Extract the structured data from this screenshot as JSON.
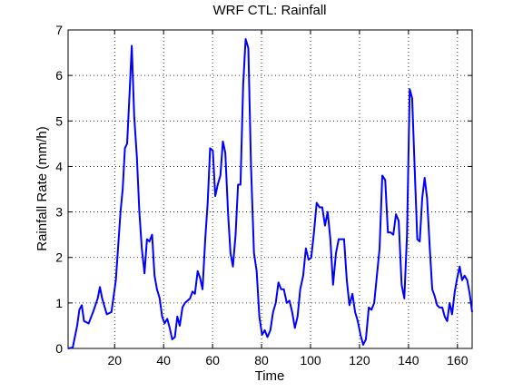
{
  "chart_data": {
    "type": "line",
    "title": "WRF CTL: Rainfall",
    "x_label": "Time",
    "y_label": "Rainfall Rate (mm/h)",
    "x": [
      1,
      2.9,
      4.7,
      5.6,
      6.6,
      7.5,
      9.4,
      11.2,
      13.1,
      14.0,
      14.9,
      16.8,
      18.7,
      20.5,
      22.4,
      23.3,
      24.2,
      25.1,
      26.1,
      27,
      28.0,
      29.1,
      30.1,
      31.1,
      32.2,
      33.2,
      34.2,
      35.3,
      36.3,
      37.3,
      38.4,
      39.4,
      40.4,
      41.5,
      42.5,
      43.5,
      44.6,
      45.6,
      46.6,
      47.7,
      48.7,
      50.8,
      51.8,
      52.8,
      53.9,
      54.9,
      55.9,
      57.0,
      58.0,
      59.0,
      60.1,
      61.1,
      62.1,
      63.2,
      64.2,
      65.2,
      66.3,
      67.3,
      68.3,
      69.4,
      70.4,
      71.4,
      72.5,
      73.5,
      74.6,
      75.7,
      76.9,
      78.0,
      79.1,
      80.2,
      81.3,
      82.4,
      83.6,
      84.7,
      85.8,
      86.9,
      88.0,
      89.1,
      90.3,
      91.4,
      92.5,
      93.6,
      94.7,
      95.8,
      97.0,
      98.1,
      99.2,
      100.3,
      101.4,
      102.5,
      103.7,
      104.8,
      105.9,
      107.0,
      108.1,
      109.2,
      110.4,
      111.5,
      112.6,
      113.7,
      114.8,
      115.9,
      117.1,
      118.2,
      119.3,
      120.4,
      121.5,
      122.6,
      123.8,
      124.9,
      126.0,
      127.1,
      128.2,
      129.3,
      130.5,
      131.6,
      132.7,
      133.8,
      134.9,
      136.0,
      137.2,
      138.3,
      139.4,
      140.5,
      141.5,
      142.5,
      143.6,
      144.6,
      145.6,
      146.6,
      147.6,
      148.7,
      149.7,
      150.7,
      151.7,
      152.7,
      153.8,
      154.8,
      155.8,
      156.8,
      157.8,
      158.9,
      159.9,
      160.9,
      161.9,
      162.9,
      164.0,
      165.0,
      166
    ],
    "series": [
      {
        "name": "Rainfall",
        "color": "#0000ff",
        "values": [
          0,
          0.02,
          0.5,
          0.85,
          0.95,
          0.6,
          0.55,
          0.8,
          1.1,
          1.35,
          1.1,
          0.75,
          0.8,
          1.5,
          3.0,
          3.5,
          4.4,
          4.5,
          5.6,
          6.65,
          5.1,
          4.2,
          3.0,
          2.2,
          1.65,
          2.4,
          2.35,
          2.5,
          1.6,
          1.3,
          1.1,
          0.7,
          0.55,
          0.65,
          0.45,
          0.2,
          0.25,
          0.7,
          0.5,
          0.9,
          1.0,
          1.1,
          1.25,
          1.2,
          1.7,
          1.55,
          1.3,
          2.4,
          3.2,
          4.4,
          4.35,
          3.35,
          3.6,
          3.8,
          4.55,
          4.3,
          3.0,
          2.1,
          1.8,
          2.5,
          3.6,
          3.6,
          5.8,
          6.8,
          6.6,
          4.0,
          2.1,
          1.7,
          0.7,
          0.3,
          0.4,
          0.25,
          0.4,
          0.8,
          1.0,
          1.45,
          1.3,
          1.3,
          1.0,
          1.05,
          0.8,
          0.45,
          0.7,
          1.3,
          1.6,
          2.2,
          1.95,
          2.0,
          2.55,
          3.2,
          3.1,
          3.1,
          2.7,
          3.0,
          2.4,
          1.4,
          2.1,
          2.4,
          2.4,
          2.4,
          1.5,
          0.95,
          1.2,
          0.8,
          0.6,
          0.3,
          0.08,
          0.2,
          0.9,
          0.85,
          1.0,
          1.6,
          2.2,
          3.8,
          3.7,
          2.55,
          2.55,
          2.5,
          2.95,
          2.8,
          1.4,
          1.1,
          2.5,
          5.7,
          5.5,
          4.0,
          2.4,
          2.35,
          3.3,
          3.75,
          3.3,
          2.2,
          1.3,
          1.15,
          0.95,
          0.9,
          0.9,
          0.7,
          0.6,
          1.0,
          0.75,
          1.25,
          1.55,
          1.8,
          1.5,
          1.6,
          1.5,
          1.2,
          0.8
        ]
      }
    ],
    "xlim": [
      1,
      166
    ],
    "ylim": [
      0,
      7
    ],
    "xticks": [
      20,
      40,
      60,
      80,
      100,
      120,
      140,
      160
    ],
    "yticks": [
      0,
      1,
      2,
      3,
      4,
      5,
      6,
      7
    ],
    "grid": true
  }
}
